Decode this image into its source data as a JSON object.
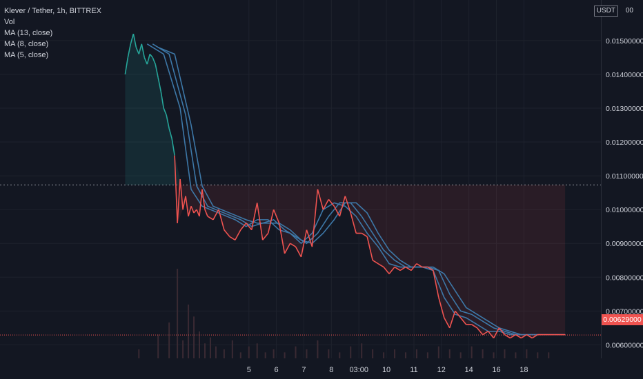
{
  "header": {
    "symbol_title": "Klever / Tether, 1h, BITTREX",
    "vol_label": "Vol",
    "ma13_label": "MA (13, close)",
    "ma8_label": "MA (8, close)",
    "ma5_label": "MA (5, close)"
  },
  "price_axis": {
    "currency_label": "USDT",
    "currency_tail": "00",
    "top_label_partial": "0.0",
    "current_price_label": "0.00629000"
  },
  "colors": {
    "background": "#131722",
    "grid": "#1e222d",
    "price_up": "#26a69a",
    "price_down": "#ef5350",
    "ma_line": "#3d78a8",
    "badge": "#ef5350"
  },
  "chart_data": {
    "type": "line",
    "title": "Klever / Tether, 1h, BITTREX",
    "ylabel": "USDT",
    "ylim": [
      0.0056,
      0.0162
    ],
    "y_ticks": [
      "0.01500000",
      "0.01400000",
      "0.01300000",
      "0.01200000",
      "0.01100000",
      "0.01000000",
      "0.00900000",
      "0.00800000",
      "0.00700000",
      "0.00600000"
    ],
    "y_tick_values": [
      0.015,
      0.014,
      0.013,
      0.012,
      0.011,
      0.01,
      0.009,
      0.008,
      0.007,
      0.006
    ],
    "x_ticks": [
      "5",
      "6",
      "7",
      "8",
      "03:00",
      "10",
      "11",
      "12",
      "14",
      "16",
      "18"
    ],
    "x_tick_positions": [
      4.5,
      5.5,
      6.5,
      7.5,
      8.5,
      9.5,
      10.5,
      11.5,
      12.5,
      13.5,
      14.5
    ],
    "reference_level": 0.01073,
    "current_price": 0.00629,
    "series": [
      {
        "name": "Price",
        "x": [
          0.0,
          0.1,
          0.2,
          0.3,
          0.4,
          0.5,
          0.6,
          0.7,
          0.8,
          0.9,
          1.0,
          1.1,
          1.2,
          1.3,
          1.4,
          1.5,
          1.6,
          1.7,
          1.8,
          1.9,
          2.0,
          2.1,
          2.2,
          2.3,
          2.4,
          2.5,
          2.6,
          2.7,
          2.8,
          2.9,
          3.0,
          3.2,
          3.4,
          3.6,
          3.8,
          4.0,
          4.2,
          4.4,
          4.6,
          4.8,
          5.0,
          5.2,
          5.4,
          5.6,
          5.8,
          6.0,
          6.2,
          6.4,
          6.6,
          6.8,
          7.0,
          7.2,
          7.4,
          7.6,
          7.8,
          8.0,
          8.2,
          8.4,
          8.6,
          8.8,
          9.0,
          9.2,
          9.4,
          9.6,
          9.8,
          10.0,
          10.2,
          10.4,
          10.6,
          10.8,
          11.0,
          11.2,
          11.4,
          11.6,
          11.8,
          12.0,
          12.2,
          12.4,
          12.6,
          12.8,
          13.0,
          13.2,
          13.4,
          13.6,
          13.8,
          14.0,
          14.2,
          14.4,
          14.6,
          14.8,
          15.0,
          15.2,
          15.4,
          15.6,
          15.8,
          16.0
        ],
        "values": [
          0.014,
          0.0145,
          0.0149,
          0.0152,
          0.0148,
          0.0146,
          0.0149,
          0.0145,
          0.0143,
          0.0146,
          0.0145,
          0.0143,
          0.0139,
          0.0135,
          0.013,
          0.0128,
          0.0124,
          0.0121,
          0.0116,
          0.0096,
          0.0109,
          0.01,
          0.0104,
          0.0098,
          0.0101,
          0.0099,
          0.01,
          0.0098,
          0.0106,
          0.01,
          0.0098,
          0.0097,
          0.01,
          0.0094,
          0.0092,
          0.0091,
          0.0094,
          0.0096,
          0.0094,
          0.0102,
          0.0091,
          0.0093,
          0.01,
          0.0096,
          0.0087,
          0.009,
          0.0089,
          0.0086,
          0.0094,
          0.0089,
          0.0106,
          0.01,
          0.0103,
          0.0101,
          0.0098,
          0.0104,
          0.0099,
          0.0093,
          0.0093,
          0.0092,
          0.0085,
          0.0084,
          0.0083,
          0.0081,
          0.0083,
          0.0082,
          0.0083,
          0.0082,
          0.0084,
          0.0083,
          0.0083,
          0.0082,
          0.0074,
          0.0068,
          0.0065,
          0.007,
          0.0068,
          0.0066,
          0.0066,
          0.0065,
          0.0063,
          0.0064,
          0.0062,
          0.0065,
          0.0063,
          0.0062,
          0.0063,
          0.0062,
          0.0063,
          0.0062,
          0.0063,
          0.0063,
          0.0063,
          0.0063,
          0.0063,
          0.0063
        ]
      },
      {
        "name": "MA (5, close)",
        "x": [
          0.8,
          1.4,
          2.0,
          2.4,
          2.8,
          3.4,
          4.0,
          4.4,
          4.8,
          5.2,
          5.6,
          6.0,
          6.4,
          6.8,
          7.2,
          7.6,
          8.0,
          8.4,
          8.8,
          9.2,
          9.6,
          10.0,
          10.4,
          10.8,
          11.2,
          11.6,
          12.0,
          12.4,
          12.8,
          13.2,
          13.6,
          14.0,
          14.4,
          14.8,
          15.2,
          15.6,
          16.0
        ],
        "values": [
          0.0149,
          0.0146,
          0.013,
          0.0106,
          0.0101,
          0.0099,
          0.0097,
          0.0095,
          0.0097,
          0.0097,
          0.0094,
          0.0093,
          0.009,
          0.0093,
          0.01,
          0.0102,
          0.0101,
          0.0098,
          0.0093,
          0.0089,
          0.0084,
          0.0083,
          0.0083,
          0.0083,
          0.0082,
          0.0074,
          0.0069,
          0.0068,
          0.0066,
          0.0064,
          0.0064,
          0.0063,
          0.0063,
          0.0063,
          0.0063,
          0.0063,
          0.0063
        ]
      },
      {
        "name": "MA (8, close)",
        "x": [
          1.0,
          1.6,
          2.2,
          2.6,
          3.0,
          3.6,
          4.2,
          4.6,
          5.0,
          5.4,
          5.8,
          6.2,
          6.6,
          7.0,
          7.4,
          7.8,
          8.2,
          8.6,
          9.0,
          9.4,
          9.8,
          10.2,
          10.6,
          11.0,
          11.4,
          11.8,
          12.2,
          12.6,
          13.0,
          13.4,
          13.8,
          14.2,
          14.6,
          15.0,
          15.4,
          15.8,
          16.0
        ],
        "values": [
          0.0149,
          0.0146,
          0.0128,
          0.0107,
          0.0101,
          0.0099,
          0.0097,
          0.0095,
          0.0096,
          0.0097,
          0.0094,
          0.0092,
          0.009,
          0.0093,
          0.0098,
          0.0102,
          0.0102,
          0.0098,
          0.0093,
          0.0088,
          0.0085,
          0.0083,
          0.0083,
          0.0083,
          0.0082,
          0.0075,
          0.007,
          0.0069,
          0.0067,
          0.0065,
          0.0064,
          0.0063,
          0.0063,
          0.0063,
          0.0063,
          0.0063,
          0.0063
        ]
      },
      {
        "name": "MA (13, close)",
        "x": [
          1.2,
          1.8,
          2.4,
          2.8,
          3.2,
          3.8,
          4.4,
          4.8,
          5.2,
          5.6,
          6.0,
          6.4,
          6.8,
          7.2,
          7.6,
          8.0,
          8.4,
          8.8,
          9.2,
          9.6,
          10.0,
          10.4,
          10.8,
          11.2,
          11.6,
          12.0,
          12.4,
          12.8,
          13.2,
          13.6,
          14.0,
          14.4,
          14.8,
          15.2,
          15.6,
          16.0
        ],
        "values": [
          0.0148,
          0.0146,
          0.0125,
          0.0107,
          0.0101,
          0.0099,
          0.0097,
          0.0096,
          0.0096,
          0.0096,
          0.0094,
          0.0091,
          0.009,
          0.0093,
          0.0097,
          0.0102,
          0.0102,
          0.0099,
          0.0093,
          0.0088,
          0.0085,
          0.0083,
          0.0083,
          0.0083,
          0.0081,
          0.0076,
          0.0071,
          0.0069,
          0.0067,
          0.0065,
          0.0064,
          0.0063,
          0.0063,
          0.0063,
          0.0063,
          0.0063
        ]
      }
    ],
    "volume": {
      "x": [
        0.5,
        1.2,
        1.6,
        1.9,
        2.1,
        2.3,
        2.5,
        2.7,
        2.9,
        3.1,
        3.3,
        3.6,
        3.9,
        4.2,
        4.5,
        4.8,
        5.1,
        5.4,
        5.8,
        6.2,
        6.6,
        7.0,
        7.4,
        7.8,
        8.2,
        8.6,
        9.0,
        9.4,
        9.8,
        10.2,
        10.6,
        11.0,
        11.4,
        11.8,
        12.2,
        12.6,
        13.0,
        13.4,
        13.8,
        14.2,
        14.6,
        15.0,
        15.4
      ],
      "values": [
        3,
        8,
        12,
        30,
        6,
        18,
        14,
        9,
        5,
        7,
        4,
        3,
        6,
        2,
        4,
        5,
        2,
        3,
        2,
        4,
        3,
        6,
        3,
        2,
        4,
        5,
        3,
        2,
        3,
        2,
        3,
        2,
        4,
        3,
        2,
        4,
        3,
        2,
        3,
        2,
        3,
        2,
        2
      ]
    }
  }
}
